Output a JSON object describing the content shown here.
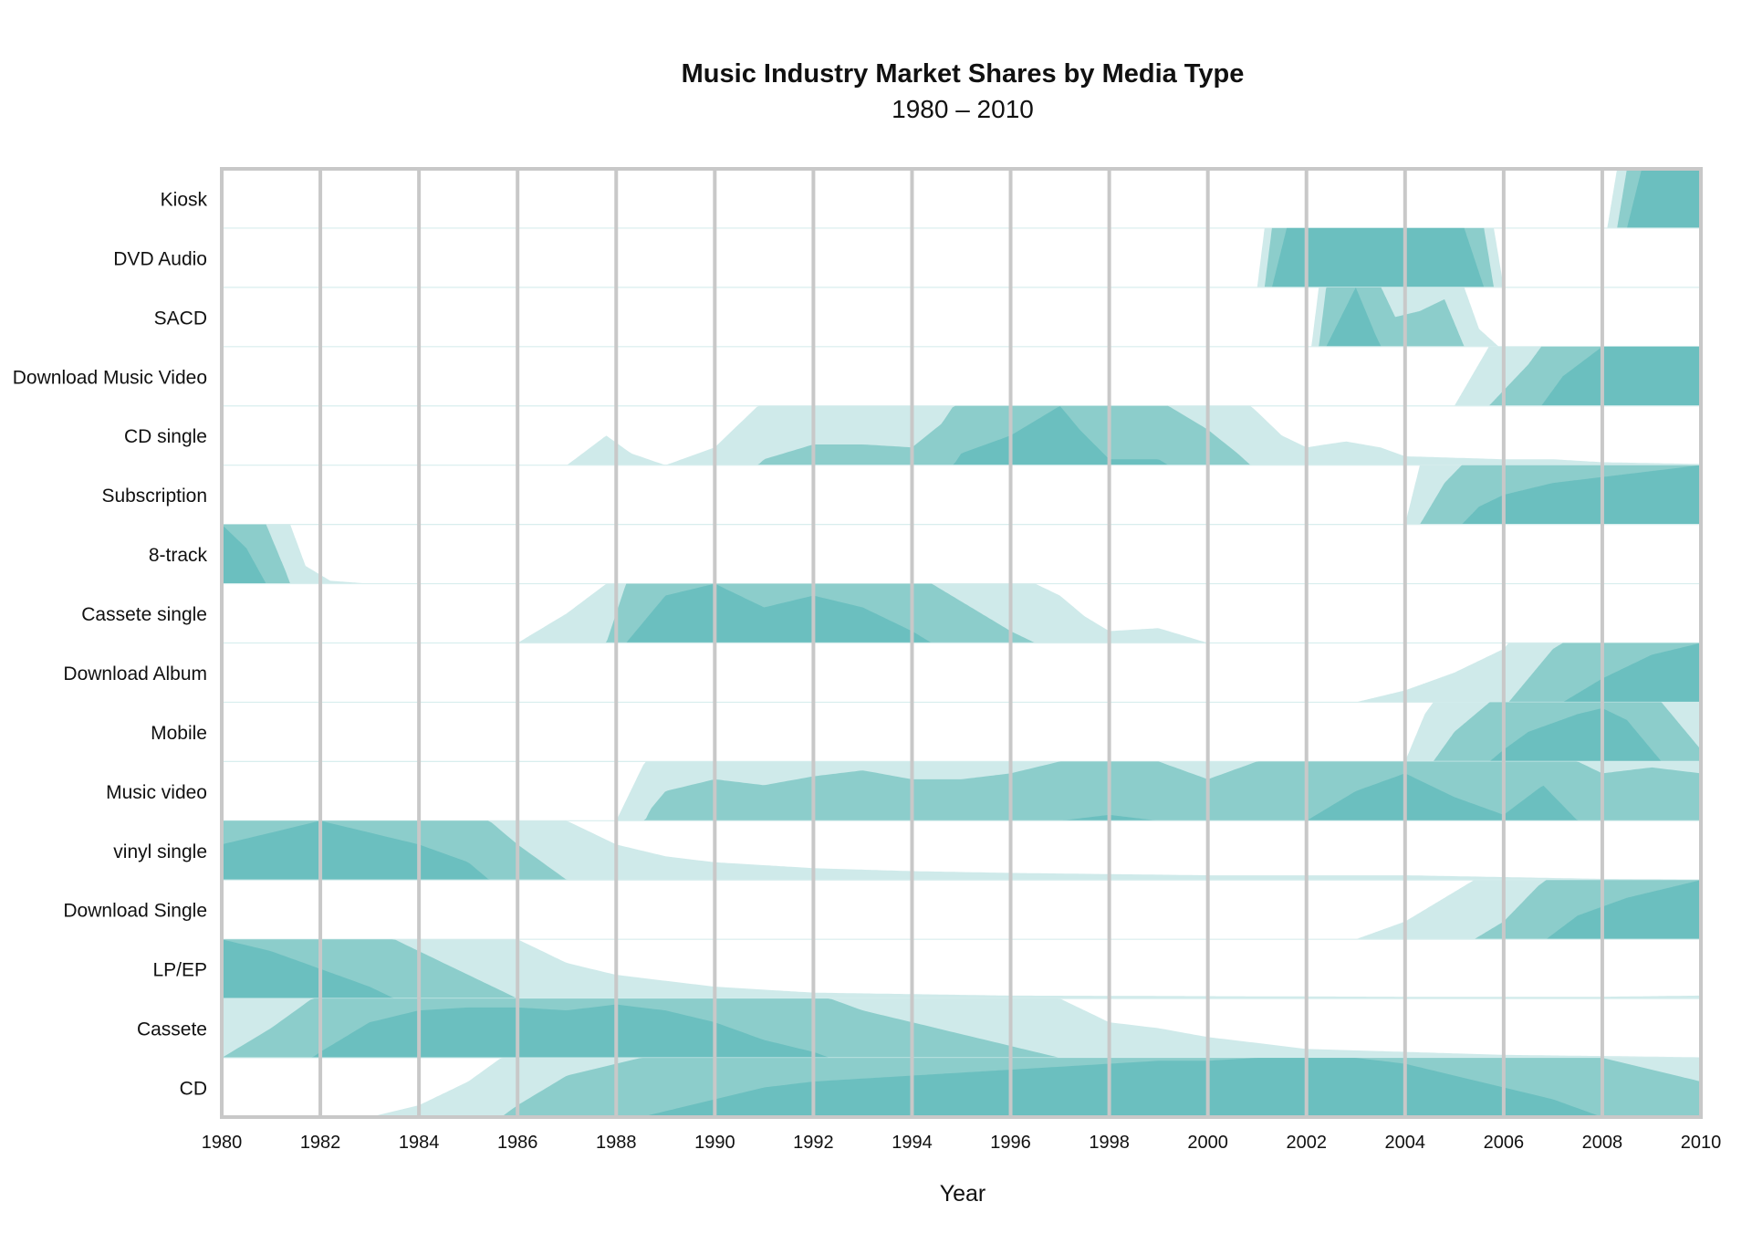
{
  "chart_data": {
    "type": "area",
    "title": "Music Industry Market Shares by Media Type",
    "subtitle": "1980 – 2010",
    "xlabel": "Year",
    "ylabel": "",
    "xlim": [
      1980,
      2010
    ],
    "xticks": [
      1980,
      1982,
      1984,
      1986,
      1988,
      1990,
      1992,
      1994,
      1996,
      1998,
      2000,
      2002,
      2004,
      2006,
      2008,
      2010
    ],
    "grid": true,
    "band_max": 3,
    "colors": {
      "light": "#cfeaea",
      "medium": "#8ccdcb",
      "dark": "#6bbfbf",
      "grid": "#c8c8c8",
      "rowline": "#d8eeee"
    },
    "series": [
      {
        "name": "Kiosk",
        "points": [
          [
            2008.1,
            0
          ],
          [
            2008.3,
            1
          ],
          [
            2008.5,
            2
          ],
          [
            2008.8,
            3
          ],
          [
            2010,
            3
          ]
        ]
      },
      {
        "name": "DVD Audio",
        "points": [
          [
            2001,
            0
          ],
          [
            2001.3,
            2
          ],
          [
            2001.6,
            3
          ],
          [
            2005.2,
            3
          ],
          [
            2005.6,
            2
          ],
          [
            2006,
            0
          ]
        ]
      },
      {
        "name": "SACD",
        "points": [
          [
            2002.1,
            0
          ],
          [
            2002.4,
            2
          ],
          [
            2002.7,
            2.5
          ],
          [
            2003,
            3
          ],
          [
            2003.4,
            2.2
          ],
          [
            2003.8,
            1.5
          ],
          [
            2004.3,
            1.6
          ],
          [
            2004.8,
            1.8
          ],
          [
            2005.2,
            1
          ],
          [
            2005.5,
            0.3
          ],
          [
            2005.9,
            0
          ]
        ]
      },
      {
        "name": "Download Music Video",
        "points": [
          [
            2005,
            0
          ],
          [
            2005.7,
            1
          ],
          [
            2006.5,
            1.7
          ],
          [
            2007.2,
            2.5
          ],
          [
            2008,
            3
          ],
          [
            2010,
            3
          ]
        ]
      },
      {
        "name": "CD single",
        "points": [
          [
            1987,
            0
          ],
          [
            1987.8,
            0.5
          ],
          [
            1988.3,
            0.2
          ],
          [
            1989,
            0
          ],
          [
            1990,
            0.3
          ],
          [
            1991,
            1.1
          ],
          [
            1992,
            1.35
          ],
          [
            1993,
            1.35
          ],
          [
            1994,
            1.3
          ],
          [
            1994.6,
            1.7
          ],
          [
            1995,
            2.2
          ],
          [
            1996,
            2.5
          ],
          [
            1996.6,
            2.8
          ],
          [
            1997,
            3
          ],
          [
            1997.4,
            2.6
          ],
          [
            1998,
            2.1
          ],
          [
            1999,
            2.1
          ],
          [
            2000,
            1.6
          ],
          [
            2000.6,
            1.2
          ],
          [
            2001,
            0.9
          ],
          [
            2001.5,
            0.5
          ],
          [
            2002,
            0.3
          ],
          [
            2002.8,
            0.4
          ],
          [
            2003.5,
            0.3
          ],
          [
            2004,
            0.15
          ],
          [
            2006,
            0.1
          ],
          [
            2007,
            0.1
          ],
          [
            2008,
            0.05
          ],
          [
            2010,
            0.02
          ]
        ]
      },
      {
        "name": "Subscription",
        "points": [
          [
            2004,
            0
          ],
          [
            2004.3,
            1
          ],
          [
            2004.8,
            1.7
          ],
          [
            2005.5,
            2.3
          ],
          [
            2006,
            2.5
          ],
          [
            2007,
            2.7
          ],
          [
            2008,
            2.8
          ],
          [
            2009,
            2.9
          ],
          [
            2010,
            3
          ]
        ]
      },
      {
        "name": "8-track",
        "points": [
          [
            1980,
            3
          ],
          [
            1980.5,
            2.6
          ],
          [
            1980.9,
            2
          ],
          [
            1981.3,
            1.2
          ],
          [
            1981.7,
            0.3
          ],
          [
            1982.2,
            0.05
          ],
          [
            1983,
            0
          ]
        ]
      },
      {
        "name": "Cassete single",
        "points": [
          [
            1986,
            0
          ],
          [
            1987,
            0.5
          ],
          [
            1987.8,
            1
          ],
          [
            1988.2,
            2
          ],
          [
            1988.7,
            2.5
          ],
          [
            1989,
            2.8
          ],
          [
            1990,
            3
          ],
          [
            1990.5,
            2.8
          ],
          [
            1991,
            2.6
          ],
          [
            1992,
            2.8
          ],
          [
            1993,
            2.6
          ],
          [
            1994,
            2.2
          ],
          [
            1995,
            1.7
          ],
          [
            1996,
            1.2
          ],
          [
            1997,
            0.8
          ],
          [
            1997.5,
            0.45
          ],
          [
            1998,
            0.2
          ],
          [
            1999,
            0.25
          ],
          [
            2000,
            0
          ]
        ]
      },
      {
        "name": "Download Album",
        "points": [
          [
            2003,
            0
          ],
          [
            2004,
            0.2
          ],
          [
            2005,
            0.5
          ],
          [
            2006,
            0.9
          ],
          [
            2006.5,
            1.4
          ],
          [
            2007,
            1.9
          ],
          [
            2008,
            2.4
          ],
          [
            2008.5,
            2.6
          ],
          [
            2009,
            2.8
          ],
          [
            2010,
            3
          ]
        ]
      },
      {
        "name": "Mobile",
        "points": [
          [
            2004,
            0
          ],
          [
            2004.4,
            0.8
          ],
          [
            2005,
            1.5
          ],
          [
            2006,
            2.2
          ],
          [
            2006.5,
            2.5
          ],
          [
            2007.5,
            2.8
          ],
          [
            2008,
            2.9
          ],
          [
            2008.5,
            2.7
          ],
          [
            2009,
            2.2
          ],
          [
            2010,
            1.2
          ]
        ]
      },
      {
        "name": "Music video",
        "points": [
          [
            1988,
            0
          ],
          [
            1988.7,
            1.2
          ],
          [
            1989,
            1.5
          ],
          [
            1990,
            1.7
          ],
          [
            1991,
            1.6
          ],
          [
            1992,
            1.75
          ],
          [
            1993,
            1.85
          ],
          [
            1994,
            1.7
          ],
          [
            1995,
            1.7
          ],
          [
            1996,
            1.8
          ],
          [
            1997,
            2
          ],
          [
            1998,
            2.1
          ],
          [
            1999,
            2
          ],
          [
            2000,
            1.7
          ],
          [
            2001,
            2
          ],
          [
            2002,
            2
          ],
          [
            2003,
            2.5
          ],
          [
            2004,
            2.8
          ],
          [
            2005,
            2.4
          ],
          [
            2006,
            2.1
          ],
          [
            2006.8,
            2.6
          ],
          [
            2007.5,
            2
          ],
          [
            2008,
            1.8
          ],
          [
            2009,
            1.9
          ],
          [
            2010,
            1.8
          ]
        ]
      },
      {
        "name": "vinyl single",
        "points": [
          [
            1980,
            2.6
          ],
          [
            1981,
            2.8
          ],
          [
            1982,
            3
          ],
          [
            1983,
            2.8
          ],
          [
            1984,
            2.6
          ],
          [
            1985,
            2.3
          ],
          [
            1986,
            1.6
          ],
          [
            1987,
            1
          ],
          [
            1988,
            0.6
          ],
          [
            1989,
            0.4
          ],
          [
            1990,
            0.3
          ],
          [
            1992,
            0.2
          ],
          [
            1994,
            0.15
          ],
          [
            1996,
            0.12
          ],
          [
            1998,
            0.1
          ],
          [
            2000,
            0.08
          ],
          [
            2004,
            0.08
          ],
          [
            2006,
            0.05
          ],
          [
            2008,
            0.02
          ],
          [
            2010,
            0.01
          ]
        ]
      },
      {
        "name": "Download Single",
        "points": [
          [
            2003,
            0
          ],
          [
            2004,
            0.3
          ],
          [
            2005,
            0.8
          ],
          [
            2006,
            1.3
          ],
          [
            2006.7,
            1.9
          ],
          [
            2007.5,
            2.4
          ],
          [
            2008.5,
            2.7
          ],
          [
            2010,
            3
          ]
        ]
      },
      {
        "name": "LP/EP",
        "points": [
          [
            1980,
            3
          ],
          [
            1981,
            2.8
          ],
          [
            1982,
            2.5
          ],
          [
            1983,
            2.2
          ],
          [
            1984,
            1.8
          ],
          [
            1985,
            1.4
          ],
          [
            1986,
            1
          ],
          [
            1987,
            0.6
          ],
          [
            1988,
            0.4
          ],
          [
            1990,
            0.2
          ],
          [
            1992,
            0.1
          ],
          [
            1996,
            0.05
          ],
          [
            2004,
            0.03
          ],
          [
            2008,
            0.03
          ],
          [
            2010,
            0.05
          ]
        ]
      },
      {
        "name": "Cassete",
        "points": [
          [
            1980,
            1
          ],
          [
            1981,
            1.5
          ],
          [
            1982,
            2.1
          ],
          [
            1983,
            2.6
          ],
          [
            1984,
            2.8
          ],
          [
            1985,
            2.85
          ],
          [
            1986,
            2.85
          ],
          [
            1987,
            2.8
          ],
          [
            1988,
            2.9
          ],
          [
            1989,
            2.8
          ],
          [
            1990,
            2.6
          ],
          [
            1991,
            2.3
          ],
          [
            1992,
            2.1
          ],
          [
            1993,
            1.8
          ],
          [
            1994,
            1.6
          ],
          [
            1995,
            1.4
          ],
          [
            1996,
            1.2
          ],
          [
            1997,
            1
          ],
          [
            1998,
            0.6
          ],
          [
            1999,
            0.5
          ],
          [
            2000,
            0.35
          ],
          [
            2001,
            0.25
          ],
          [
            2002,
            0.15
          ],
          [
            2004,
            0.1
          ],
          [
            2006,
            0.05
          ],
          [
            2008,
            0.03
          ],
          [
            2010,
            0.01
          ]
        ]
      },
      {
        "name": "CD",
        "points": [
          [
            1983,
            0
          ],
          [
            1984,
            0.2
          ],
          [
            1985,
            0.6
          ],
          [
            1986,
            1.2
          ],
          [
            1987,
            1.7
          ],
          [
            1988,
            1.9
          ],
          [
            1989,
            2.1
          ],
          [
            1990,
            2.3
          ],
          [
            1991,
            2.5
          ],
          [
            1992,
            2.6
          ],
          [
            1993,
            2.65
          ],
          [
            1994,
            2.7
          ],
          [
            1995,
            2.75
          ],
          [
            1996,
            2.8
          ],
          [
            1997,
            2.85
          ],
          [
            1998,
            2.9
          ],
          [
            1999,
            2.95
          ],
          [
            2000,
            2.95
          ],
          [
            2001,
            3
          ],
          [
            2002,
            3
          ],
          [
            2003,
            3
          ],
          [
            2004,
            2.9
          ],
          [
            2005,
            2.7
          ],
          [
            2006,
            2.5
          ],
          [
            2007,
            2.3
          ],
          [
            2008,
            2
          ],
          [
            2009,
            1.8
          ],
          [
            2010,
            1.6
          ]
        ]
      }
    ]
  }
}
